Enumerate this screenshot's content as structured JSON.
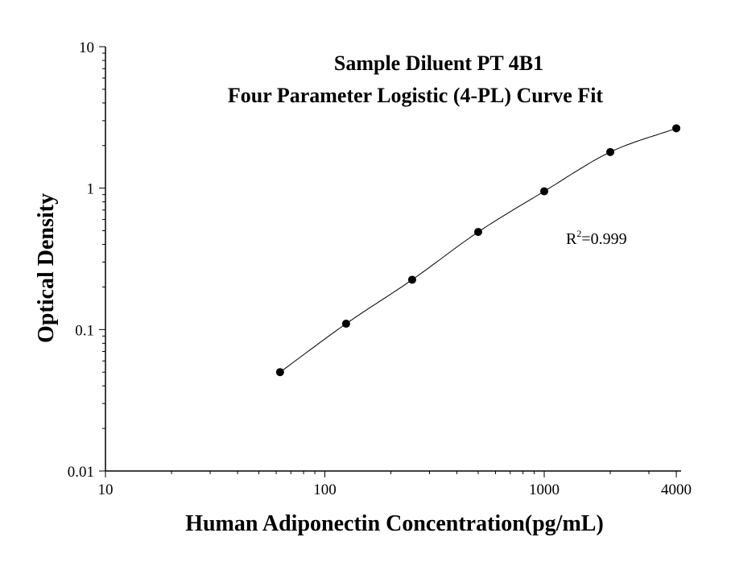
{
  "chart_data": {
    "type": "scatter",
    "title": "Sample Diluent PT 4B1",
    "subtitle": "Four Parameter Logistic (4-PL) Curve Fit",
    "xlabel": "Human Adiponectin Concentration(pg/mL)",
    "ylabel": "Optical Density",
    "xscale": "log",
    "yscale": "log",
    "xlim": [
      10,
      4000
    ],
    "ylim": [
      0.01,
      10
    ],
    "x_ticks": [
      10,
      100,
      1000,
      4000
    ],
    "x_tick_labels": [
      "10",
      "100",
      "1000",
      "4000"
    ],
    "y_ticks": [
      0.01,
      0.1,
      1,
      10
    ],
    "y_tick_labels": [
      "0.01",
      "0.1",
      "1",
      "10"
    ],
    "grid": false,
    "legend": "none",
    "series": [
      {
        "x": [
          62.5,
          125,
          250,
          500,
          1000,
          2000,
          4000
        ],
        "y": [
          0.05,
          0.11,
          0.225,
          0.49,
          0.95,
          1.8,
          2.65
        ]
      }
    ],
    "fit_curve": "4-PL",
    "annotation": {
      "r_label": "R",
      "r_sup": "2",
      "r_value": "=0.999"
    },
    "colors": {
      "points": "#000000",
      "curve": "#000000",
      "axes": "#000000"
    }
  }
}
